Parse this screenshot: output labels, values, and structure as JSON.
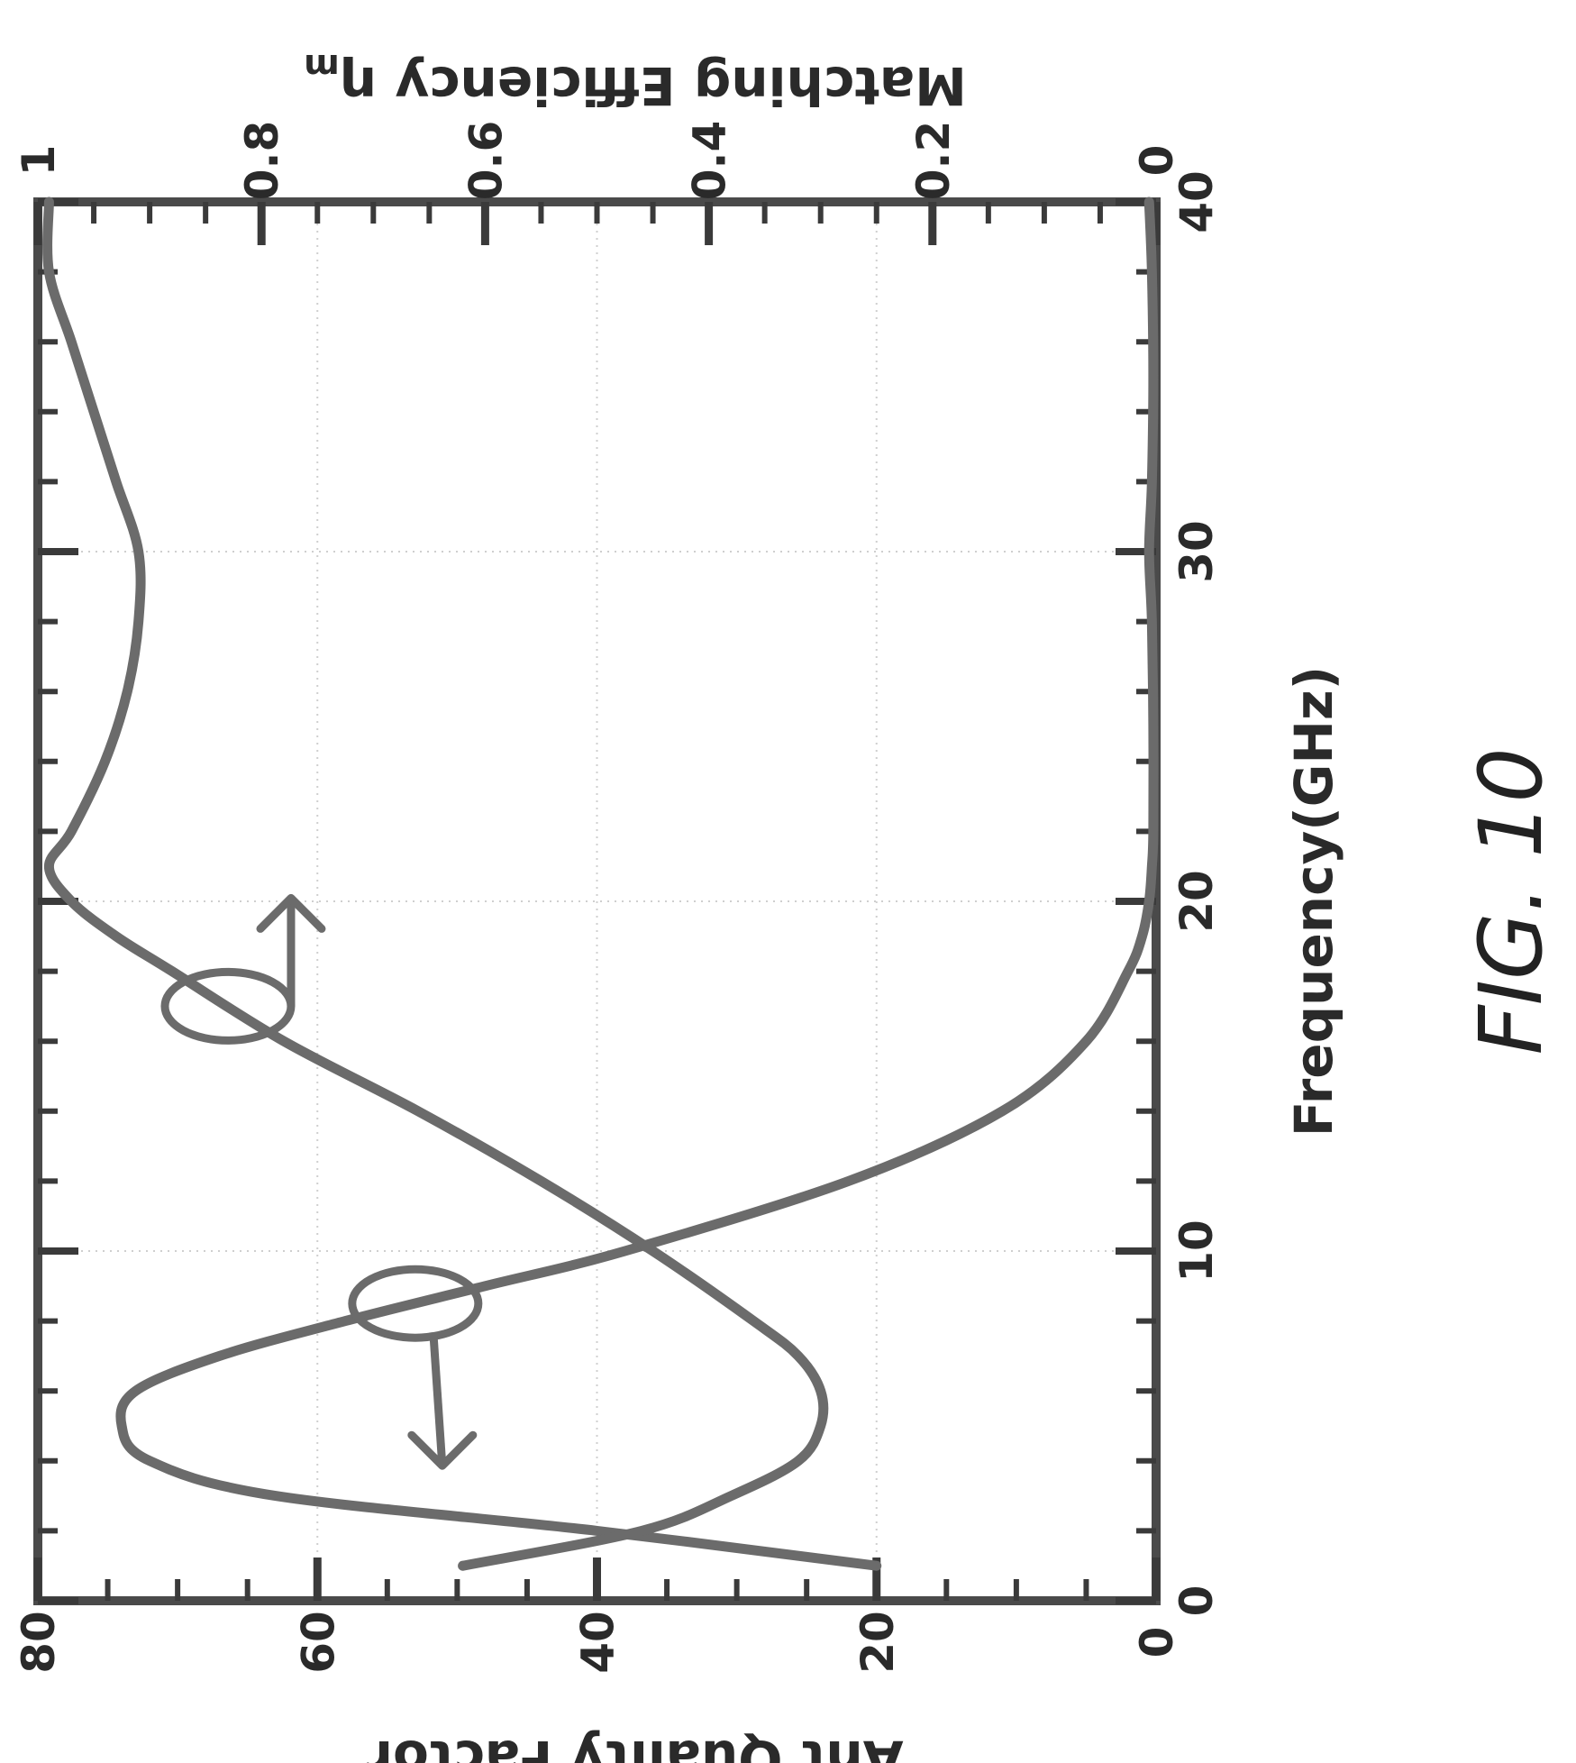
{
  "figure_label": "FIG. 10",
  "chart_data": {
    "type": "line",
    "orientation": "rotated 90 degrees clockwise",
    "xlabel": "Frequency(GHz)",
    "ylabel_left": "Ant Quality Factor",
    "ylabel_right": "Matching Efficiency ηm",
    "ylabel_right_main": "Matching Efficiency ",
    "ylabel_right_symbol": "η",
    "ylabel_right_subscript": "m",
    "xlim": [
      0,
      40
    ],
    "ylim_left": [
      0,
      80
    ],
    "ylim_right": [
      0,
      1
    ],
    "x_ticks": [
      "0",
      "10",
      "20",
      "30",
      "40"
    ],
    "y_left_ticks": [
      "0",
      "20",
      "40",
      "60",
      "80"
    ],
    "y_right_ticks": [
      "0",
      "0.2",
      "0.4",
      "0.6",
      "0.8",
      "1"
    ],
    "grid": true,
    "series": [
      {
        "axis": "left",
        "color": "#6b6b6b",
        "x": [
          1,
          2,
          3,
          4,
          5,
          6,
          7,
          8,
          9,
          10,
          12,
          14,
          16,
          18,
          19,
          20,
          21,
          22,
          25,
          28,
          30,
          32,
          35,
          38,
          40
        ],
        "y": [
          20,
          40,
          63,
          72,
          74,
          73,
          67,
          58,
          48,
          38,
          22,
          11,
          5,
          2,
          1,
          0.5,
          0.3,
          0.2,
          0.2,
          0.3,
          0.5,
          0.3,
          0.2,
          0.3,
          0.5
        ]
      },
      {
        "axis": "right",
        "color": "#6b6b6b",
        "x": [
          1,
          2,
          3,
          4,
          5,
          6,
          7,
          8,
          10,
          12,
          14,
          16,
          18,
          19,
          20,
          21,
          22,
          24,
          26,
          28,
          30,
          32,
          34,
          36,
          38,
          40
        ],
        "y": [
          0.62,
          0.46,
          0.38,
          0.32,
          0.3,
          0.3,
          0.32,
          0.36,
          0.45,
          0.55,
          0.66,
          0.78,
          0.88,
          0.93,
          0.97,
          0.99,
          0.97,
          0.94,
          0.92,
          0.91,
          0.91,
          0.93,
          0.95,
          0.97,
          0.99,
          0.99
        ]
      }
    ],
    "annotations": [
      {
        "type": "ellipse-arrow",
        "marks_series": 0,
        "arrow_points_to": "left axis",
        "at_x": 8.5
      },
      {
        "type": "ellipse-arrow",
        "marks_series": 1,
        "arrow_points_to": "right axis",
        "at_x": 17
      }
    ]
  }
}
